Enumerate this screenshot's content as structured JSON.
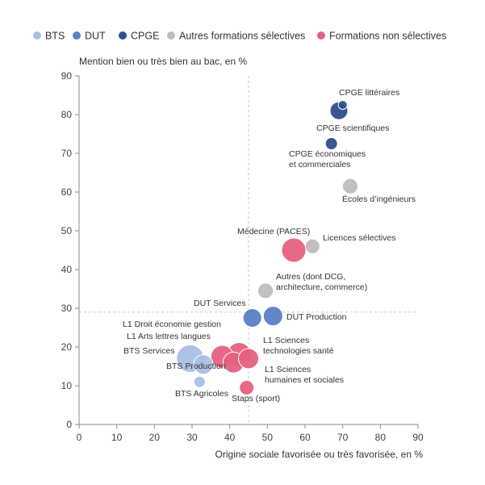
{
  "chart_data": {
    "type": "scatter",
    "subtype": "bubble",
    "title": "",
    "xlabel": "Origine sociale favorisée ou très favorisée, en %",
    "ylabel": "Mention bien ou très bien au bac, en %",
    "xlim": [
      0,
      90
    ],
    "ylim": [
      0,
      90
    ],
    "xticks": [
      0,
      10,
      20,
      30,
      40,
      50,
      60,
      70,
      80,
      90
    ],
    "yticks": [
      0,
      10,
      20,
      30,
      40,
      50,
      60,
      70,
      80,
      90
    ],
    "grid": false,
    "legend_position": "top",
    "reference_lines": {
      "x": 45,
      "y": 29
    },
    "series": [
      {
        "name": "BTS",
        "color": "#a9bfe3"
      },
      {
        "name": "DUT",
        "color": "#5a80c4"
      },
      {
        "name": "CPGE",
        "color": "#2e4f8c"
      },
      {
        "name": "Autres formations sélectives",
        "color": "#bdbdbd"
      },
      {
        "name": "Formations non sélectives",
        "color": "#e5617f"
      }
    ],
    "points": [
      {
        "name": "CPGE littéraires",
        "series": 2,
        "x": 70,
        "y": 82.5,
        "r": 5.5,
        "label_lines": [
          "CPGE littéraires"
        ]
      },
      {
        "name": "CPGE scientifiques",
        "series": 2,
        "x": 69,
        "y": 81,
        "r": 11,
        "label_lines": [
          "CPGE scientifiques"
        ]
      },
      {
        "name": "CPGE économiques et commerciales",
        "series": 2,
        "x": 67,
        "y": 72.5,
        "r": 7.5,
        "label_lines": [
          "CPGE économiques",
          "et commerciales"
        ]
      },
      {
        "name": "Écoles d'ingénieurs",
        "series": 3,
        "x": 72,
        "y": 61.5,
        "r": 9.5,
        "label_lines": [
          "Écoles d’ingénieurs"
        ]
      },
      {
        "name": "Licences sélectives",
        "series": 3,
        "x": 62,
        "y": 46,
        "r": 9,
        "label_lines": [
          "Licences sélectives"
        ]
      },
      {
        "name": "Médecine (PACES)",
        "series": 4,
        "x": 57,
        "y": 45,
        "r": 15,
        "label_lines": [
          "Médecine (PACES)"
        ]
      },
      {
        "name": "Autres (dont DCG, architecture, commerce)",
        "series": 3,
        "x": 49.5,
        "y": 34.5,
        "r": 9.5,
        "label_lines": [
          "Autres (dont DCG,",
          "architecture, commerce)"
        ]
      },
      {
        "name": "DUT Services",
        "series": 1,
        "x": 46,
        "y": 27.5,
        "r": 11.5,
        "label_lines": [
          "DUT Services"
        ]
      },
      {
        "name": "DUT Production",
        "series": 1,
        "x": 51.5,
        "y": 28,
        "r": 12,
        "label_lines": [
          "DUT Production"
        ]
      },
      {
        "name": "BTS Services",
        "series": 0,
        "x": 29.5,
        "y": 17,
        "r": 17,
        "label_lines": [
          "BTS Services"
        ]
      },
      {
        "name": "BTS Production",
        "series": 0,
        "x": 33,
        "y": 15.5,
        "r": 12,
        "label_lines": [
          "BTS Production"
        ]
      },
      {
        "name": "L1 Droit économie gestion",
        "series": 4,
        "x": 38,
        "y": 17.5,
        "r": 14,
        "label_lines": [
          "L1 Droit économie gestion"
        ]
      },
      {
        "name": "L1 Arts lettres langues",
        "series": 4,
        "x": 41,
        "y": 16,
        "r": 13,
        "label_lines": [
          "L1 Arts lettres langues"
        ]
      },
      {
        "name": "L1 Sciences technologies santé",
        "series": 4,
        "x": 42.5,
        "y": 18,
        "r": 15,
        "label_lines": [
          "L1 Sciences",
          "technologies santé"
        ]
      },
      {
        "name": "L1 Sciences humaines et sociales",
        "series": 4,
        "x": 45,
        "y": 17,
        "r": 12.5,
        "label_lines": [
          "L1 Sciences",
          "humaines et sociales"
        ]
      },
      {
        "name": "BTS Agricoles",
        "series": 0,
        "x": 32,
        "y": 11,
        "r": 7,
        "label_lines": [
          "BTS Agricoles"
        ]
      },
      {
        "name": "Staps (sport)",
        "series": 4,
        "x": 44.5,
        "y": 9.5,
        "r": 9,
        "label_lines": [
          "Staps (sport)"
        ]
      }
    ]
  }
}
